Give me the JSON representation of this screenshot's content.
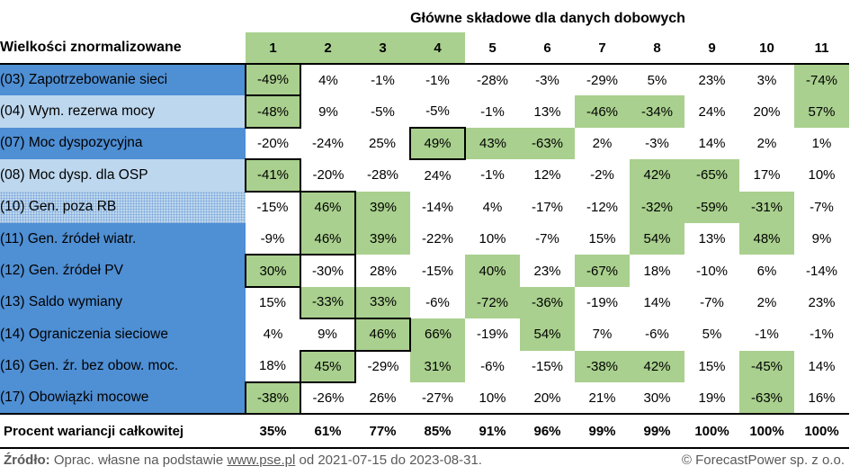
{
  "header": {
    "top_title": "Główne składowe dla danych dobowych",
    "row_header": "Wielkości znormalizowane",
    "columns": [
      "1",
      "2",
      "3",
      "4",
      "5",
      "6",
      "7",
      "8",
      "9",
      "10",
      "11"
    ]
  },
  "rows": [
    {
      "label": "(03) Zapotrzebowanie sieci",
      "values": [
        "-49%",
        "4%",
        "-1%",
        "-1%",
        "-28%",
        "-3%",
        "-29%",
        "5%",
        "23%",
        "3%",
        "-74%"
      ]
    },
    {
      "label": "(04) Wym. rezerwa mocy",
      "values": [
        "-48%",
        "9%",
        "-5%",
        "-5%",
        "-1%",
        "13%",
        "-46%",
        "-34%",
        "24%",
        "20%",
        "57%"
      ]
    },
    {
      "label": "(07) Moc dyspozycyjna",
      "values": [
        "-20%",
        "-24%",
        "25%",
        "49%",
        "43%",
        "-63%",
        "2%",
        "-3%",
        "14%",
        "2%",
        "1%"
      ]
    },
    {
      "label": "(08) Moc dysp. dla OSP",
      "values": [
        "-41%",
        "-20%",
        "-28%",
        "24%",
        "-1%",
        "12%",
        "-2%",
        "42%",
        "-65%",
        "17%",
        "10%"
      ]
    },
    {
      "label": "(10) Gen. poza RB",
      "values": [
        "-15%",
        "46%",
        "39%",
        "-14%",
        "4%",
        "-17%",
        "-12%",
        "-32%",
        "-59%",
        "-31%",
        "-7%"
      ]
    },
    {
      "label": "(11) Gen. źródeł wiatr.",
      "values": [
        "-9%",
        "46%",
        "39%",
        "-22%",
        "10%",
        "-7%",
        "15%",
        "54%",
        "13%",
        "48%",
        "9%"
      ]
    },
    {
      "label": "(12) Gen. źródeł PV",
      "values": [
        "30%",
        "-30%",
        "28%",
        "-15%",
        "40%",
        "23%",
        "-67%",
        "18%",
        "-10%",
        "6%",
        "-14%"
      ]
    },
    {
      "label": "(13) Saldo wymiany",
      "values": [
        "15%",
        "-33%",
        "33%",
        "-6%",
        "-72%",
        "-36%",
        "-19%",
        "14%",
        "-7%",
        "2%",
        "23%"
      ]
    },
    {
      "label": "(14) Ograniczenia sieciowe",
      "values": [
        "4%",
        "9%",
        "46%",
        "66%",
        "-19%",
        "54%",
        "7%",
        "-6%",
        "5%",
        "-1%",
        "-1%"
      ]
    },
    {
      "label": "(16) Gen. źr. bez obow. moc.",
      "values": [
        "18%",
        "45%",
        "-29%",
        "31%",
        "-6%",
        "-15%",
        "-38%",
        "42%",
        "15%",
        "-45%",
        "14%"
      ]
    },
    {
      "label": "(17) Obowiązki mocowe",
      "values": [
        "-38%",
        "-26%",
        "26%",
        "-27%",
        "10%",
        "20%",
        "21%",
        "30%",
        "19%",
        "-63%",
        "16%"
      ]
    }
  ],
  "footer": {
    "label": "Procent wariancji całkowitej",
    "values": [
      "35%",
      "61%",
      "77%",
      "85%",
      "91%",
      "96%",
      "99%",
      "99%",
      "100%",
      "100%",
      "100%"
    ]
  },
  "source": {
    "prefix": "Źródło:",
    "text1": " Oprac. własne na podstawie ",
    "link": "www.pse.pl",
    "text2": " od 2021-07-15 do 2023-08-31.",
    "copyright": "© ForecastPower sp. z o.o."
  },
  "colors": {
    "highlight_green": "#a9d08e",
    "label_dark_blue": "#4f8fd4",
    "label_light_blue": "#bdd7ee"
  }
}
